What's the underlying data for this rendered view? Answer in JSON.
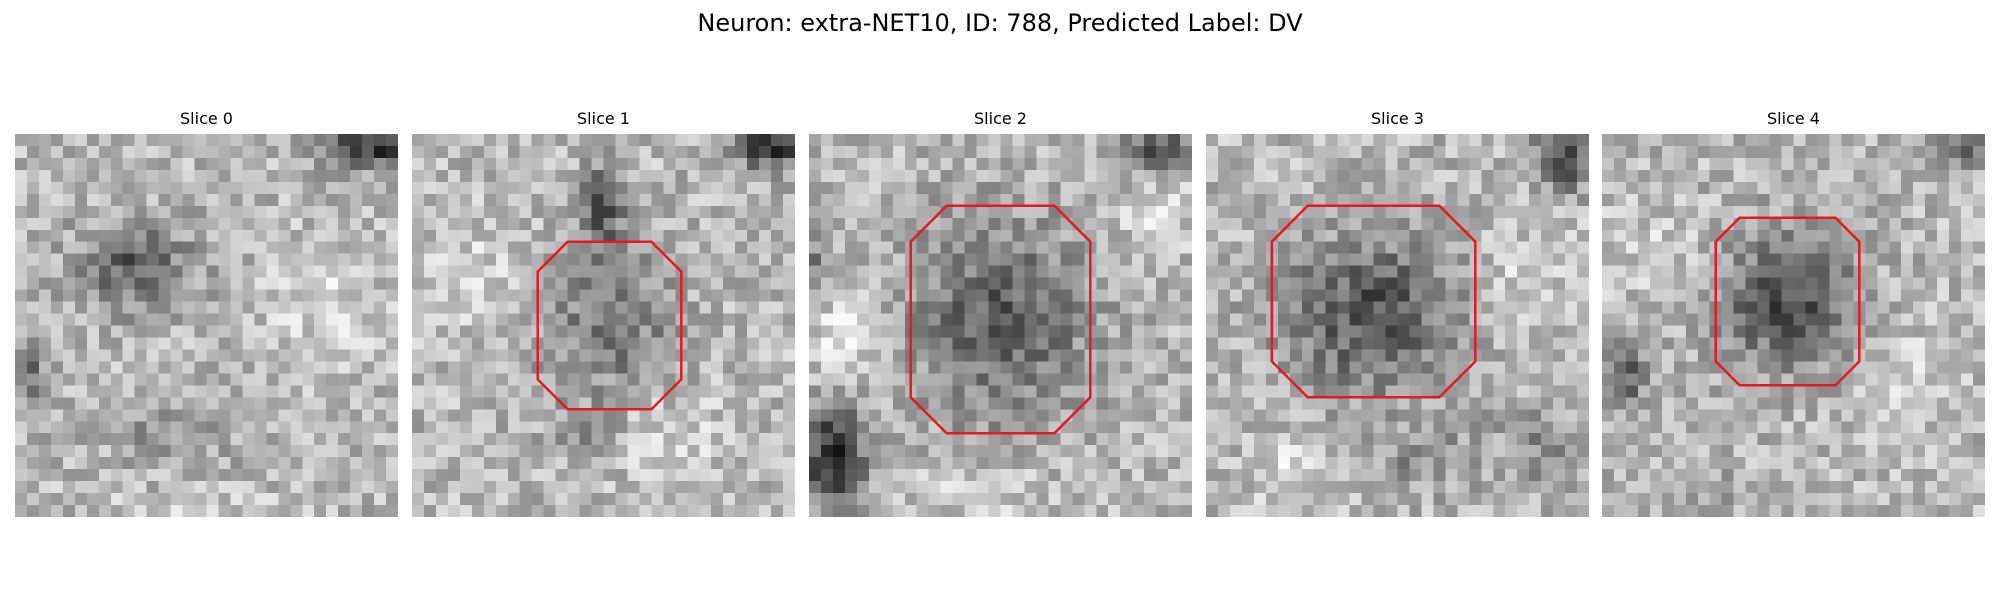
{
  "figure": {
    "title": "Neuron: extra-NET10, ID: 788, Predicted Label: DV"
  },
  "panels": [
    {
      "title": "Slice 0",
      "has_contour": false,
      "seed": 11
    },
    {
      "title": "Slice 1",
      "has_contour": true,
      "seed": 23
    },
    {
      "title": "Slice 2",
      "has_contour": true,
      "seed": 37
    },
    {
      "title": "Slice 3",
      "has_contour": true,
      "seed": 41
    },
    {
      "title": "Slice 4",
      "has_contour": true,
      "seed": 53
    }
  ],
  "style": {
    "contour_color": "#e41a1c",
    "colormap": "grayscale"
  }
}
